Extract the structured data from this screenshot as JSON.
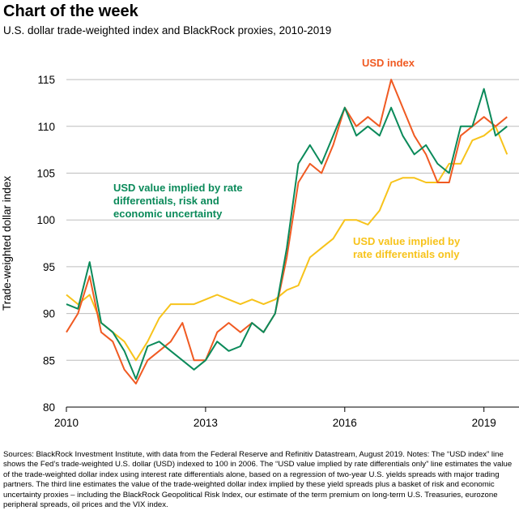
{
  "chart_data": {
    "type": "line",
    "title": "Chart of the week",
    "subtitle": "U.S. dollar trade-weighted index and BlackRock proxies, 2010-2019",
    "y_label": "Trade-weighted dollar index",
    "x": [
      2010.0,
      2010.25,
      2010.5,
      2010.75,
      2011.0,
      2011.25,
      2011.5,
      2011.75,
      2012.0,
      2012.25,
      2012.5,
      2012.75,
      2013.0,
      2013.25,
      2013.5,
      2013.75,
      2014.0,
      2014.25,
      2014.5,
      2014.75,
      2015.0,
      2015.25,
      2015.5,
      2015.75,
      2016.0,
      2016.25,
      2016.5,
      2016.75,
      2017.0,
      2017.25,
      2017.5,
      2017.75,
      2018.0,
      2018.25,
      2018.5,
      2018.75,
      2019.0,
      2019.25,
      2019.5
    ],
    "series": [
      {
        "name": "USD value implied by rate differentials only",
        "color": "#f7c31b",
        "values": [
          92,
          91,
          92,
          89,
          88,
          87,
          85,
          87,
          89.5,
          91,
          91,
          91,
          91.5,
          92,
          91.5,
          91,
          91.5,
          91,
          91.5,
          92.5,
          93,
          96,
          97,
          98,
          100,
          100,
          99.5,
          101,
          104,
          104.5,
          104.5,
          104,
          104,
          106,
          106,
          108.5,
          109,
          110,
          107
        ]
      },
      {
        "name": "USD index",
        "color": "#f05a22",
        "values": [
          88,
          90,
          94,
          88,
          87,
          84,
          82.5,
          85,
          86,
          87,
          89,
          85,
          85,
          88,
          89,
          88,
          89,
          88,
          90,
          96,
          104,
          106,
          105,
          108,
          112,
          110,
          111,
          110,
          115,
          112,
          109,
          107,
          104,
          104,
          109,
          110,
          111,
          110,
          111
        ]
      },
      {
        "name": "USD value implied by rate differentials, risk and economic uncertainty",
        "color": "#0b8a5a",
        "values": [
          91,
          90.5,
          95.5,
          89,
          88,
          86,
          83,
          86.5,
          87,
          86,
          85,
          84,
          85,
          87,
          86,
          86.5,
          89,
          88,
          90,
          97,
          106,
          108,
          106,
          109,
          112,
          109,
          110,
          109,
          112,
          109,
          107,
          108,
          106,
          105,
          110,
          110,
          114,
          109,
          110
        ]
      }
    ],
    "annotations": [
      {
        "lines": [
          "USD index"
        ],
        "color": "#f05a22"
      },
      {
        "lines": [
          "USD value implied by rate",
          "differentials, risk and",
          "economic uncertainty"
        ],
        "color": "#0b8a5a"
      },
      {
        "lines": [
          "USD value implied by",
          "rate differentials only"
        ],
        "color": "#f7c31b"
      }
    ],
    "xlim": [
      2010,
      2019.7
    ],
    "xticks": [
      2010,
      2013,
      2016,
      2019
    ],
    "ylim": [
      80,
      117
    ],
    "yticks": [
      80,
      85,
      90,
      95,
      100,
      105,
      110,
      115
    ],
    "grid": true,
    "note": "Sources: BlackRock Investment Institute, with data from the Federal Reserve and Refinitiv Datastream, August 2019. Notes: The “USD index” line shows the Fed’s trade-weighted U.S. dollar (USD) indexed to 100 in 2006. The “USD value implied by rate differentials only” line estimates the value of the trade-weighted dollar index using interest rate differentials alone, based on a regression of two-year U.S. yields spreads with major trading partners. The third line estimates the value of the trade-weighted dollar index implied by these yield spreads plus a basket of risk and economic uncertainty proxies – including the BlackRock Geopolitical Risk Index, our estimate of the term premium on long-term U.S. Treasuries, eurozone peripheral spreads, oil prices and the VIX index."
  }
}
